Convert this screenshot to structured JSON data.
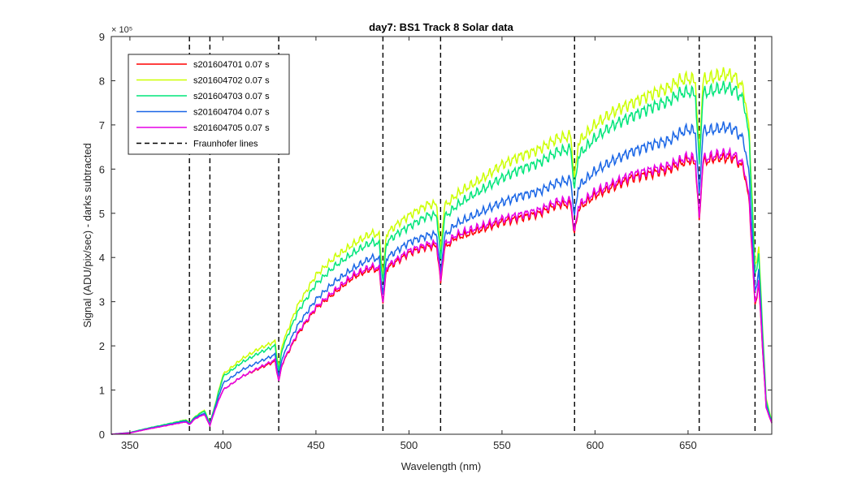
{
  "chart_data": {
    "type": "line",
    "title": "day7: BS1  Track 8 Solar data",
    "xlabel": "Wavelength (nm)",
    "ylabel": "Signal (ADU/pix/sec) - darks subtracted",
    "xlim": [
      340,
      695
    ],
    "ylim": [
      0,
      900000
    ],
    "y_multiplier_label": "× 10⁵",
    "xticks": [
      350,
      400,
      450,
      500,
      550,
      600,
      650
    ],
    "yticks": [
      0,
      1,
      2,
      3,
      4,
      5,
      6,
      7,
      8,
      9
    ],
    "grid": false,
    "legend_position": "top-left",
    "fraunhofer_lines": [
      382,
      393,
      430,
      486,
      517,
      589,
      656,
      686
    ],
    "fraunhofer_label": "Fraunhofer lines",
    "series": [
      {
        "name": "s201604701 0.07 s",
        "color": "#ff0000",
        "x": [
          340,
          350,
          360,
          370,
          380,
          382,
          385,
          390,
          393,
          396,
          400,
          410,
          420,
          428,
          430,
          432,
          440,
          450,
          460,
          470,
          480,
          484,
          486,
          488,
          495,
          500,
          510,
          515,
          517,
          519,
          525,
          530,
          540,
          550,
          560,
          570,
          580,
          587,
          589,
          591,
          600,
          610,
          620,
          630,
          640,
          645,
          650,
          654,
          656,
          658,
          665,
          670,
          675,
          680,
          683,
          686,
          688,
          692,
          695
        ],
        "y": [
          0,
          3000,
          12000,
          20000,
          28000,
          22000,
          35000,
          45000,
          20000,
          60000,
          100000,
          130000,
          150000,
          165000,
          120000,
          160000,
          225000,
          285000,
          320000,
          355000,
          375000,
          370000,
          295000,
          375000,
          395000,
          410000,
          425000,
          425000,
          340000,
          420000,
          445000,
          450000,
          465000,
          480000,
          490000,
          500000,
          520000,
          520000,
          450000,
          510000,
          540000,
          560000,
          580000,
          590000,
          600000,
          610000,
          620000,
          615000,
          480000,
          615000,
          625000,
          625000,
          625000,
          600000,
          520000,
          290000,
          340000,
          60000,
          25000
        ]
      },
      {
        "name": "s201604702 0.07 s",
        "color": "#ccff00",
        "x": [
          340,
          350,
          360,
          370,
          380,
          382,
          385,
          390,
          393,
          396,
          400,
          410,
          420,
          428,
          430,
          432,
          440,
          450,
          460,
          470,
          480,
          484,
          486,
          488,
          495,
          500,
          510,
          515,
          517,
          519,
          525,
          530,
          540,
          550,
          560,
          570,
          580,
          587,
          589,
          591,
          600,
          610,
          620,
          630,
          640,
          645,
          650,
          654,
          656,
          658,
          665,
          670,
          675,
          680,
          683,
          686,
          688,
          692,
          695
        ],
        "y": [
          0,
          4000,
          14000,
          23000,
          33000,
          26000,
          40000,
          55000,
          25000,
          70000,
          135000,
          170000,
          195000,
          210000,
          150000,
          205000,
          290000,
          360000,
          400000,
          430000,
          455000,
          450000,
          360000,
          455000,
          480000,
          495000,
          520000,
          520000,
          415000,
          515000,
          540000,
          555000,
          580000,
          610000,
          630000,
          645000,
          670000,
          675000,
          575000,
          660000,
          700000,
          730000,
          750000,
          770000,
          785000,
          800000,
          805000,
          800000,
          630000,
          800000,
          810000,
          815000,
          810000,
          780000,
          680000,
          380000,
          420000,
          80000,
          30000
        ]
      },
      {
        "name": "s201604703 0.07 s",
        "color": "#00e67a",
        "x": [
          340,
          350,
          360,
          370,
          380,
          382,
          385,
          390,
          393,
          396,
          400,
          410,
          420,
          428,
          430,
          432,
          440,
          450,
          460,
          470,
          480,
          484,
          486,
          488,
          495,
          500,
          510,
          515,
          517,
          519,
          525,
          530,
          540,
          550,
          560,
          570,
          580,
          587,
          589,
          591,
          600,
          610,
          620,
          630,
          640,
          645,
          650,
          654,
          656,
          658,
          665,
          670,
          675,
          680,
          683,
          686,
          688,
          692,
          695
        ],
        "y": [
          0,
          4000,
          14000,
          23000,
          32000,
          25000,
          39000,
          53000,
          24000,
          68000,
          130000,
          162000,
          185000,
          200000,
          143000,
          195000,
          275000,
          340000,
          380000,
          410000,
          435000,
          430000,
          345000,
          435000,
          458000,
          470000,
          495000,
          495000,
          395000,
          490000,
          515000,
          530000,
          555000,
          580000,
          600000,
          615000,
          640000,
          645000,
          550000,
          630000,
          670000,
          700000,
          720000,
          740000,
          755000,
          770000,
          775000,
          770000,
          605000,
          770000,
          780000,
          785000,
          780000,
          755000,
          660000,
          360000,
          405000,
          75000,
          28000
        ]
      },
      {
        "name": "s201604704 0.07 s",
        "color": "#1a66e6",
        "x": [
          340,
          350,
          360,
          370,
          380,
          382,
          385,
          390,
          393,
          396,
          400,
          410,
          420,
          428,
          430,
          432,
          440,
          450,
          460,
          470,
          480,
          484,
          486,
          488,
          495,
          500,
          510,
          515,
          517,
          519,
          525,
          530,
          540,
          550,
          560,
          570,
          580,
          587,
          589,
          591,
          600,
          610,
          620,
          630,
          640,
          645,
          650,
          654,
          656,
          658,
          665,
          670,
          675,
          680,
          683,
          686,
          688,
          692,
          695
        ],
        "y": [
          0,
          3500,
          13000,
          21000,
          30000,
          24000,
          37000,
          48000,
          22000,
          63000,
          115000,
          145000,
          165000,
          180000,
          130000,
          175000,
          245000,
          305000,
          345000,
          375000,
          400000,
          395000,
          315000,
          400000,
          420000,
          435000,
          450000,
          452000,
          360000,
          447000,
          475000,
          485000,
          505000,
          525000,
          540000,
          550000,
          570000,
          575000,
          490000,
          560000,
          595000,
          620000,
          640000,
          655000,
          665000,
          680000,
          690000,
          685000,
          540000,
          685000,
          690000,
          695000,
          690000,
          665000,
          580000,
          320000,
          370000,
          65000,
          26000
        ]
      },
      {
        "name": "s201604705 0.07 s",
        "color": "#e600e6",
        "x": [
          340,
          350,
          360,
          370,
          380,
          382,
          385,
          390,
          393,
          396,
          400,
          410,
          420,
          428,
          430,
          432,
          440,
          450,
          460,
          470,
          480,
          484,
          486,
          488,
          495,
          500,
          510,
          515,
          517,
          519,
          525,
          530,
          540,
          550,
          560,
          570,
          580,
          587,
          589,
          591,
          600,
          610,
          620,
          630,
          640,
          645,
          650,
          654,
          656,
          658,
          665,
          670,
          675,
          680,
          683,
          686,
          688,
          692,
          695
        ],
        "y": [
          0,
          3000,
          12000,
          20000,
          28000,
          22000,
          35000,
          45000,
          20000,
          58000,
          100000,
          130000,
          152000,
          168000,
          120000,
          162000,
          228000,
          288000,
          325000,
          360000,
          380000,
          375000,
          298000,
          380000,
          400000,
          415000,
          430000,
          432000,
          345000,
          428000,
          450000,
          458000,
          472000,
          487000,
          497000,
          507000,
          527000,
          528000,
          455000,
          517000,
          548000,
          568000,
          588000,
          598000,
          608000,
          618000,
          628000,
          622000,
          485000,
          622000,
          632000,
          635000,
          632000,
          608000,
          528000,
          295000,
          345000,
          60000,
          25000
        ]
      }
    ]
  }
}
